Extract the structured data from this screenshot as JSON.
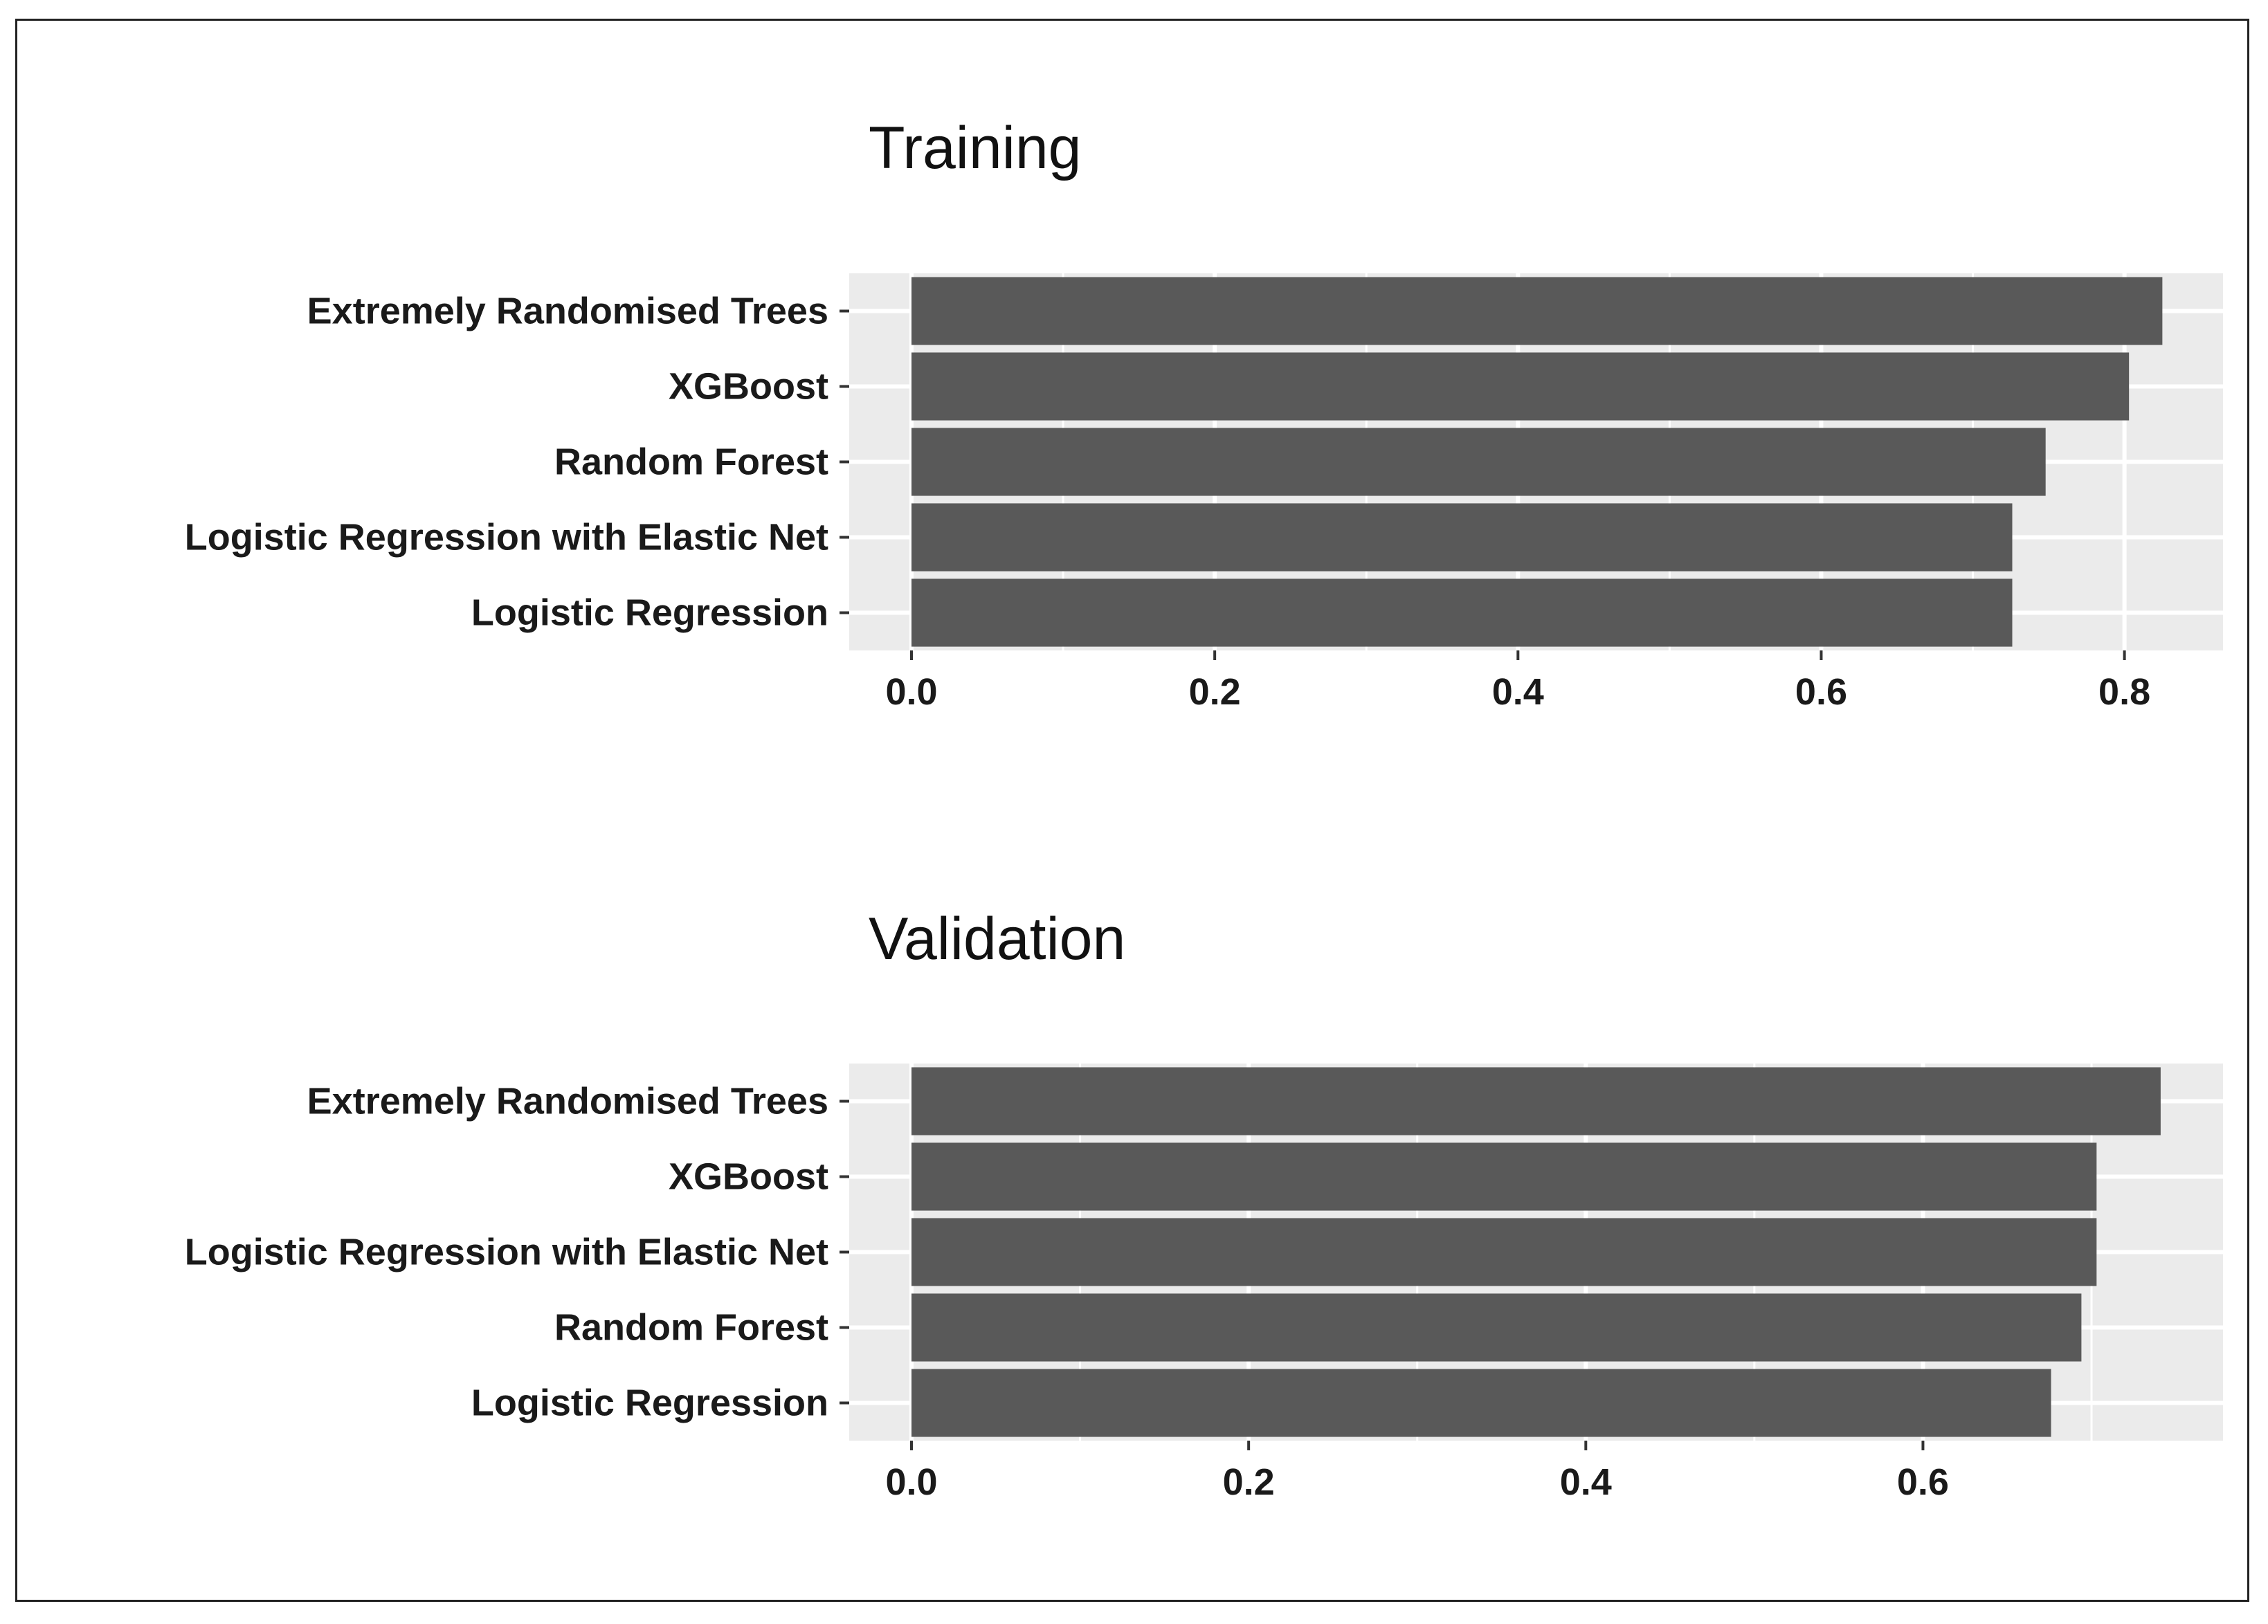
{
  "chart_data": [
    {
      "type": "bar",
      "orientation": "horizontal",
      "title": "Training",
      "categories": [
        "Logistic Regression",
        "Logistic Regression with Elastic Net",
        "Random Forest",
        "XGBoost",
        "Extremely Randomised Trees"
      ],
      "values": [
        0.726,
        0.726,
        0.748,
        0.803,
        0.825
      ],
      "xlim": [
        0,
        0.865
      ],
      "xticks": [
        "0.0",
        "0.2",
        "0.4",
        "0.6",
        "0.8"
      ],
      "bar_color": "#595959",
      "panel_color": "#ebebeb",
      "grid": true,
      "xlabel": "",
      "ylabel": ""
    },
    {
      "type": "bar",
      "orientation": "horizontal",
      "title": "Validation",
      "categories": [
        "Logistic Regression",
        "Random Forest",
        "Logistic Regression with Elastic Net",
        "XGBoost",
        "Extremely Randomised Trees"
      ],
      "values": [
        0.676,
        0.694,
        0.703,
        0.703,
        0.741
      ],
      "xlim": [
        0,
        0.778
      ],
      "xticks": [
        "0.0",
        "0.2",
        "0.4",
        "0.6"
      ],
      "bar_color": "#595959",
      "panel_color": "#ebebeb",
      "grid": true,
      "xlabel": "",
      "ylabel": ""
    }
  ]
}
